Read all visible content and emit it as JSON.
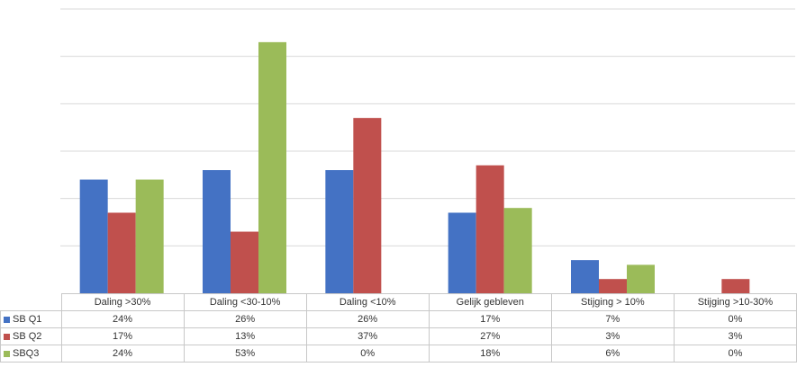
{
  "chart_data": {
    "type": "bar",
    "categories": [
      "Daling >30%",
      "Daling <30-10%",
      "Daling <10%",
      "Gelijk gebleven",
      "Stijging > 10%",
      "Stijging >10-30%"
    ],
    "series": [
      {
        "name": "SB Q1",
        "color": "#4472c4",
        "values": [
          24,
          26,
          26,
          17,
          7,
          0
        ]
      },
      {
        "name": "SB Q2",
        "color": "#c0504d",
        "values": [
          17,
          13,
          37,
          27,
          3,
          3
        ]
      },
      {
        "name": "SBQ3",
        "color": "#9bbb59",
        "values": [
          24,
          53,
          0,
          18,
          6,
          0
        ]
      }
    ],
    "table": {
      "rows": [
        [
          "24%",
          "26%",
          "26%",
          "17%",
          "7%",
          "0%"
        ],
        [
          "17%",
          "13%",
          "37%",
          "27%",
          "3%",
          "3%"
        ],
        [
          "24%",
          "53%",
          "0%",
          "18%",
          "6%",
          "0%"
        ]
      ]
    },
    "ylim": [
      0,
      60
    ],
    "grid": true,
    "legend": "data-table-left",
    "title": "",
    "xlabel": "",
    "ylabel": ""
  }
}
